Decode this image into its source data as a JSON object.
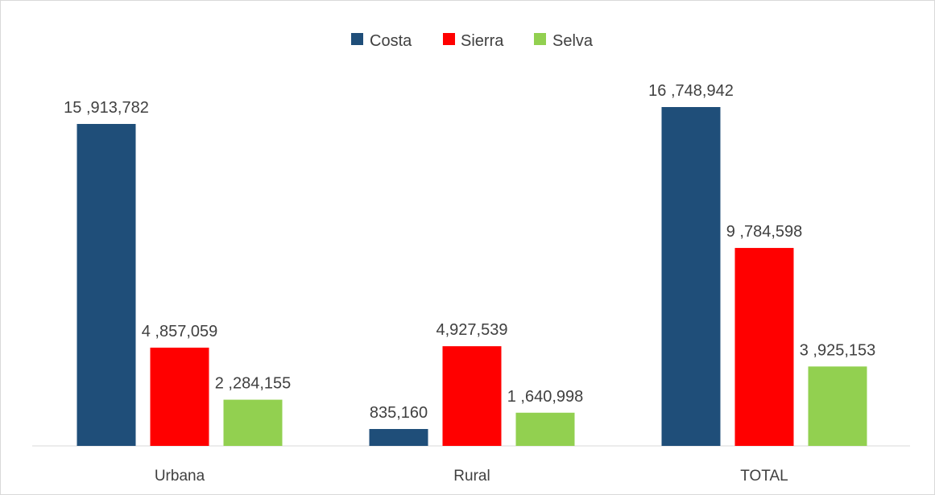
{
  "chart_data": {
    "type": "bar",
    "categories": [
      "Urbana",
      "Rural",
      "TOTAL"
    ],
    "series": [
      {
        "name": "Costa",
        "color": "#1f4e79",
        "values": [
          15913782,
          835160,
          16748942
        ],
        "labels": [
          "15 ,913,782",
          "835,160",
          "16 ,748,942"
        ]
      },
      {
        "name": "Sierra",
        "color": "#ff0000",
        "values": [
          4857059,
          4927539,
          9784598
        ],
        "labels": [
          "4 ,857,059",
          "4,927,539",
          "9 ,784,598"
        ]
      },
      {
        "name": "Selva",
        "color": "#92d050",
        "values": [
          2284155,
          1640998,
          3925153
        ],
        "labels": [
          "2 ,284,155",
          "1 ,640,998",
          "3 ,925,153"
        ]
      }
    ],
    "title": "",
    "xlabel": "",
    "ylabel": "",
    "legend": "top-center",
    "grid": false
  }
}
